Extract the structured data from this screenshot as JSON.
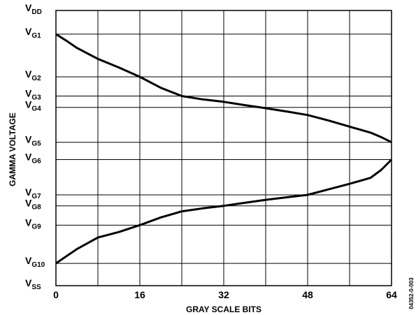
{
  "chart_data": {
    "type": "line",
    "title": "",
    "xlabel": "GRAY SCALE BITS",
    "ylabel": "GAMMA VOLTAGE",
    "xlim": [
      0,
      64
    ],
    "x_ticks": [
      "0",
      "16",
      "32",
      "48",
      "64"
    ],
    "x_tick_values": [
      0,
      16,
      32,
      48,
      64
    ],
    "y_levels": [
      {
        "base": "V",
        "sub": "DD",
        "value": 1.0
      },
      {
        "base": "V",
        "sub": "G1",
        "value": 0.914
      },
      {
        "base": "V",
        "sub": "G2",
        "value": 0.759
      },
      {
        "base": "V",
        "sub": "G3",
        "value": 0.689
      },
      {
        "base": "V",
        "sub": "G4",
        "value": 0.648
      },
      {
        "base": "V",
        "sub": "G5",
        "value": 0.521
      },
      {
        "base": "V",
        "sub": "G6",
        "value": 0.458
      },
      {
        "base": "V",
        "sub": "G7",
        "value": 0.33
      },
      {
        "base": "V",
        "sub": "G8",
        "value": 0.29
      },
      {
        "base": "V",
        "sub": "G9",
        "value": 0.22
      },
      {
        "base": "V",
        "sub": "G10",
        "value": 0.081
      },
      {
        "base": "V",
        "sub": "SS",
        "value": 0.0
      }
    ],
    "series": [
      {
        "x": [
          0,
          2,
          4,
          8,
          12,
          16,
          20,
          24,
          28,
          32,
          36,
          40,
          44,
          48,
          52,
          56,
          60,
          62,
          64
        ],
        "y": [
          0.914,
          0.89,
          0.864,
          0.824,
          0.793,
          0.759,
          0.719,
          0.689,
          0.677,
          0.668,
          0.656,
          0.645,
          0.633,
          0.62,
          0.6,
          0.578,
          0.556,
          0.54,
          0.521
        ]
      },
      {
        "x": [
          0,
          2,
          4,
          8,
          12,
          16,
          20,
          24,
          28,
          32,
          36,
          40,
          44,
          48,
          52,
          56,
          60,
          62,
          64
        ],
        "y": [
          0.081,
          0.107,
          0.133,
          0.175,
          0.195,
          0.22,
          0.248,
          0.27,
          0.281,
          0.29,
          0.301,
          0.312,
          0.321,
          0.33,
          0.35,
          0.37,
          0.392,
          0.42,
          0.458
        ]
      }
    ],
    "grid": true
  },
  "figure_code": "04352-0-003"
}
